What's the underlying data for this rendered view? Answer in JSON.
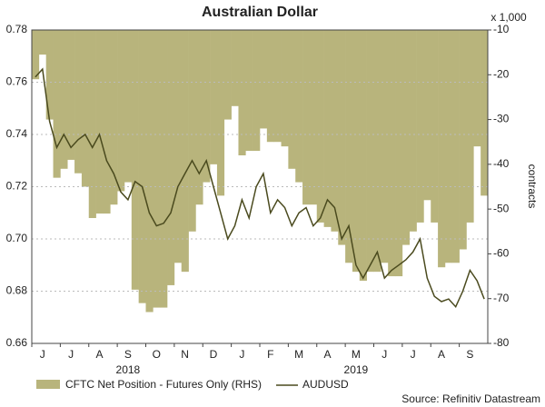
{
  "chart_data": {
    "type": "bar_line",
    "title": "Australian Dollar",
    "y2_unit_label": "x 1,000",
    "y2_label": "contracts",
    "source": "Source: Refinitiv Datastream",
    "categories": [
      null,
      "J",
      null,
      null,
      null,
      "J",
      null,
      null,
      null,
      "A",
      null,
      null,
      null,
      "S",
      null,
      null,
      null,
      "O",
      null,
      null,
      null,
      "N",
      null,
      null,
      null,
      "D",
      null,
      null,
      null,
      "J",
      null,
      null,
      null,
      "F",
      null,
      null,
      null,
      "M",
      null,
      null,
      null,
      "A",
      null,
      null,
      null,
      "M",
      null,
      null,
      null,
      "J",
      null,
      null,
      null,
      "J",
      null,
      null,
      null,
      "A",
      null,
      null,
      null,
      "S",
      null,
      null
    ],
    "x_group_labels": [
      "2018",
      "2019"
    ],
    "series": [
      {
        "name": "CFTC Net Position - Futures Only (RHS)",
        "color": "#b8b47c",
        "axis": "y2",
        "values": [
          -21,
          -15.5,
          -30,
          -43,
          -41,
          -39,
          -42,
          -45,
          -52,
          -51,
          -51,
          -49,
          -46,
          -44,
          -68,
          -71,
          -73,
          -72,
          -72,
          -67,
          -62,
          -64,
          -55,
          -49,
          -44,
          -40,
          -47,
          -30,
          -27,
          -38,
          -37,
          -37,
          -32,
          -35,
          -35,
          -36,
          -41,
          -44,
          -49,
          -49,
          -53,
          -54,
          -55,
          -58,
          -62,
          -64,
          -66,
          -64,
          -64,
          -62,
          -65,
          -65,
          -58,
          -55,
          -53,
          -48,
          -53,
          -63,
          -62,
          -62,
          -59,
          -53,
          -36,
          -47
        ]
      },
      {
        "name": "AUDUSD",
        "color": "#4a4a1e",
        "values": [
          0.762,
          0.765,
          0.745,
          0.735,
          0.74,
          0.735,
          0.738,
          0.74,
          0.735,
          0.74,
          0.73,
          0.725,
          0.718,
          0.715,
          0.722,
          0.72,
          0.71,
          0.705,
          0.706,
          0.71,
          0.72,
          0.725,
          0.73,
          0.725,
          0.73,
          0.72,
          0.71,
          0.7,
          0.705,
          0.715,
          0.708,
          0.72,
          0.725,
          0.71,
          0.715,
          0.712,
          0.705,
          0.71,
          0.712,
          0.705,
          0.708,
          0.715,
          0.712,
          0.7,
          0.705,
          0.69,
          0.685,
          0.69,
          0.695,
          0.685,
          0.688,
          0.69,
          0.692,
          0.695,
          0.7,
          0.685,
          0.678,
          0.676,
          0.677,
          0.674,
          0.68,
          0.688,
          0.684,
          0.677
        ]
      }
    ],
    "ylim": [
      0.66,
      0.78
    ],
    "yticks": [
      0.66,
      0.68,
      {
        "value": 0.7,
        "label": "0.70"
      },
      0.72,
      0.74,
      0.76,
      0.78
    ],
    "y2lim": [
      -80,
      -10
    ],
    "y2ticks": [
      -80,
      -70,
      -60,
      -50,
      -40,
      -30,
      -20,
      -10
    ],
    "grid": true
  }
}
